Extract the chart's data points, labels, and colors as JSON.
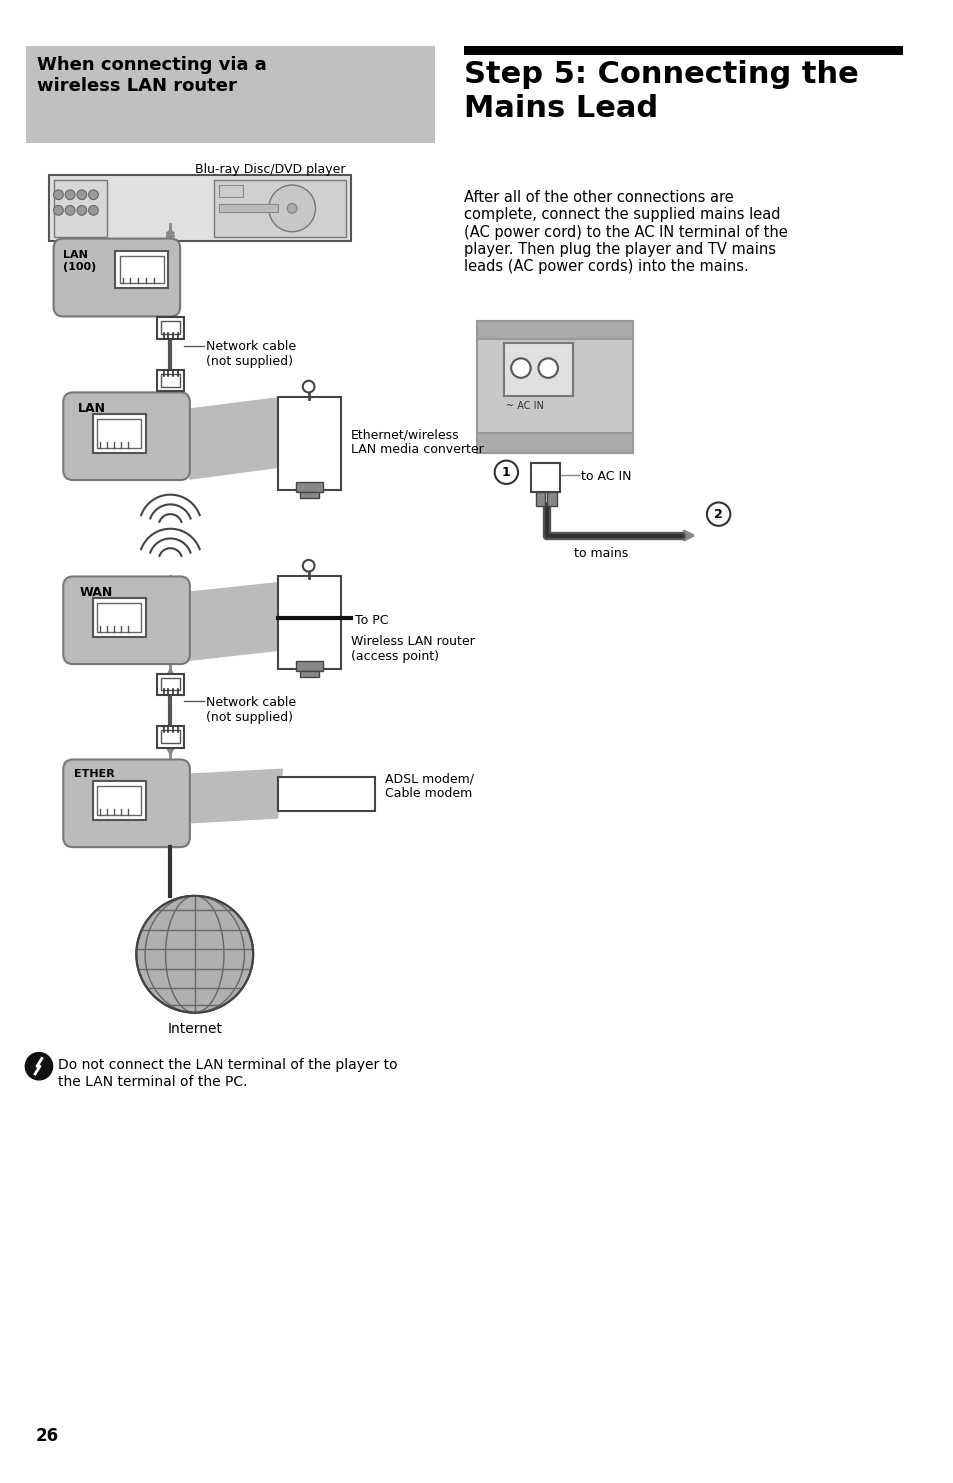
{
  "page_bg": "#ffffff",
  "left_header_bg": "#c0c0c0",
  "left_header_text": "When connecting via a\nwireless LAN router",
  "right_header_text": "Step 5: Connecting the\nMains Lead",
  "right_body_text": "After all of the other connections are\ncomplete, connect the supplied mains lead\n(AC power cord) to the AC IN terminal of the\nplayer. Then plug the player and TV mains\nleads (AC power cords) into the mains.",
  "blu_ray_label": "Blu-ray Disc/DVD player",
  "network_cable_label1": "Network cable\n(not supplied)",
  "network_cable_label2": "Network cable\n(not supplied)",
  "ethernet_label": "Ethernet/wireless\nLAN media converter",
  "wireless_router_label": "Wireless LAN router\n(access point)",
  "to_pc_label": "To PC",
  "adsl_label": "ADSL modem/\nCable modem",
  "internet_label": "Internet",
  "to_ac_in_label": "to AC IN",
  "to_mains_label": "to mains",
  "warning_text": "Do not connect the LAN terminal of the player to\nthe LAN terminal of the PC.",
  "page_number": "26"
}
